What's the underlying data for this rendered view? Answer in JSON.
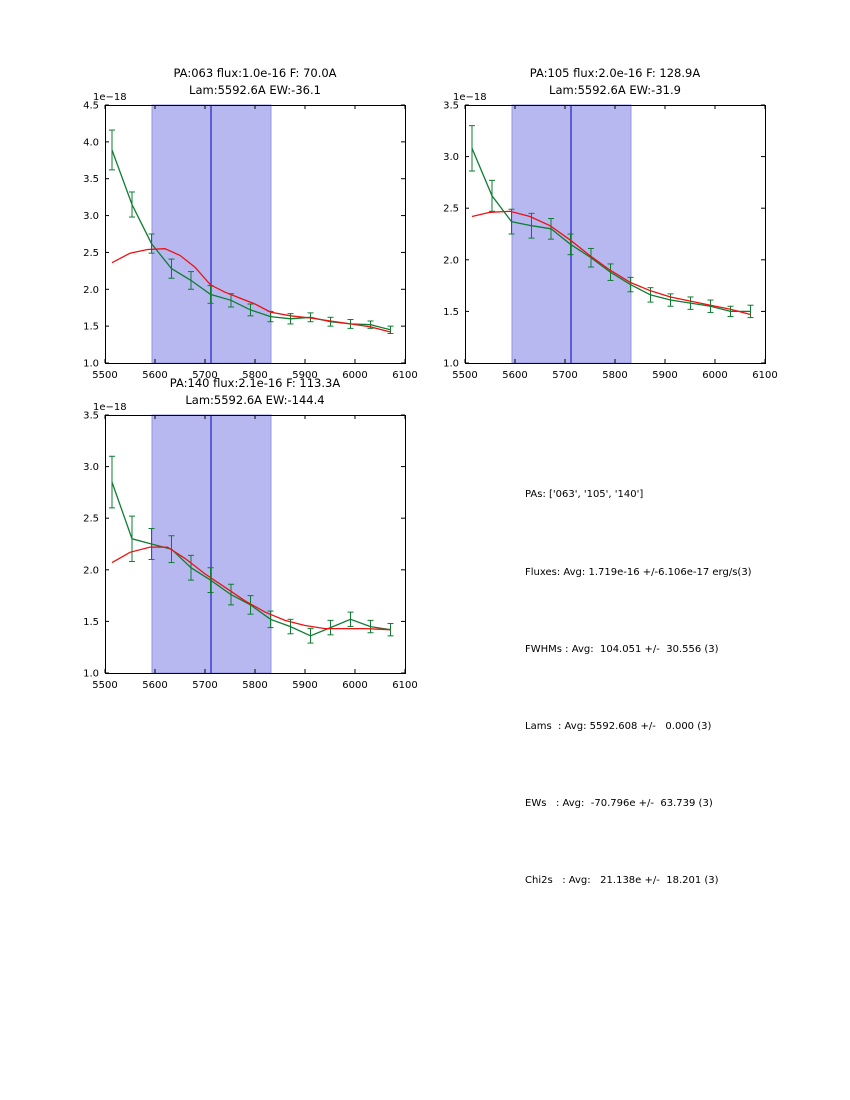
{
  "figure": {
    "background": "#ffffff"
  },
  "stats": {
    "lines": [
      "PAs: ['063', '105', '140']",
      "Fluxes: Avg: 1.719e-16 +/-6.106e-17 erg/s(3)",
      "FWHMs : Avg:  104.051 +/-  30.556 (3)",
      "Lams  : Avg: 5592.608 +/-   0.000 (3)",
      "EWs   : Avg:  -70.796e +/-  63.739 (3)",
      "Chi2s   : Avg:   21.138e +/-  18.201 (3)"
    ]
  },
  "chart_data": [
    {
      "type": "line",
      "title_line1": "PA:063 flux:1.0e-16 F: 70.0A",
      "title_line2": "Lam:5592.6A EW:-36.1",
      "offset_label": "1e−18",
      "xlabel": "",
      "ylabel": "",
      "xlim": [
        5500,
        6100
      ],
      "ylim": [
        1.0,
        4.5
      ],
      "xticks": [
        5500,
        5600,
        5700,
        5800,
        5900,
        6000,
        6100
      ],
      "yticks": [
        1.0,
        1.5,
        2.0,
        2.5,
        3.0,
        3.5,
        4.0,
        4.5
      ],
      "grid": false,
      "legend": "none",
      "band": {
        "from": 5594,
        "to": 5832,
        "color": "#b8b8f0",
        "edge": "#9595e8"
      },
      "vline": {
        "x": 5712,
        "color": "#2020c0"
      },
      "series": [
        {
          "name": "spectrum",
          "color": "#0e7d32",
          "x": [
            5514,
            5554,
            5593,
            5633,
            5672,
            5711,
            5752,
            5791,
            5831,
            5871,
            5911,
            5951,
            5991,
            6031,
            6071
          ],
          "y": [
            3.89,
            3.15,
            2.62,
            2.28,
            2.12,
            1.93,
            1.85,
            1.72,
            1.63,
            1.6,
            1.62,
            1.56,
            1.53,
            1.52,
            1.45
          ],
          "yerr": [
            0.27,
            0.17,
            0.13,
            0.13,
            0.12,
            0.12,
            0.09,
            0.08,
            0.07,
            0.07,
            0.06,
            0.06,
            0.06,
            0.05,
            0.05
          ]
        },
        {
          "name": "fit",
          "color": "#ee1111",
          "x": [
            5514,
            5550,
            5585,
            5620,
            5650,
            5680,
            5711,
            5740,
            5770,
            5800,
            5831,
            5871,
            5911,
            5951,
            5991,
            6031,
            6071
          ],
          "y": [
            2.36,
            2.49,
            2.54,
            2.55,
            2.46,
            2.3,
            2.06,
            1.96,
            1.88,
            1.8,
            1.69,
            1.64,
            1.61,
            1.57,
            1.53,
            1.49,
            1.42
          ]
        }
      ]
    },
    {
      "type": "line",
      "title_line1": "PA:105 flux:2.0e-16 F: 128.9A",
      "title_line2": "Lam:5592.6A EW:-31.9",
      "offset_label": "1e−18",
      "xlabel": "",
      "ylabel": "",
      "xlim": [
        5500,
        6100
      ],
      "ylim": [
        1.0,
        3.5
      ],
      "xticks": [
        5500,
        5600,
        5700,
        5800,
        5900,
        6000,
        6100
      ],
      "yticks": [
        1.0,
        1.5,
        2.0,
        2.5,
        3.0,
        3.5
      ],
      "grid": false,
      "legend": "none",
      "band": {
        "from": 5594,
        "to": 5832,
        "color": "#b8b8f0",
        "edge": "#9595e8"
      },
      "vline": {
        "x": 5712,
        "color": "#2020c0"
      },
      "series": [
        {
          "name": "spectrum",
          "color": "#0e7d32",
          "x": [
            5514,
            5554,
            5593,
            5633,
            5672,
            5711,
            5752,
            5791,
            5831,
            5871,
            5911,
            5951,
            5991,
            6031,
            6071
          ],
          "y": [
            3.08,
            2.62,
            2.37,
            2.33,
            2.3,
            2.15,
            2.02,
            1.88,
            1.76,
            1.66,
            1.61,
            1.58,
            1.55,
            1.5,
            1.5
          ],
          "yerr": [
            0.22,
            0.15,
            0.12,
            0.12,
            0.1,
            0.1,
            0.09,
            0.08,
            0.07,
            0.07,
            0.06,
            0.06,
            0.06,
            0.05,
            0.06
          ]
        },
        {
          "name": "fit",
          "color": "#ee1111",
          "x": [
            5514,
            5550,
            5590,
            5630,
            5670,
            5711,
            5750,
            5790,
            5831,
            5871,
            5911,
            5951,
            5991,
            6031,
            6071
          ],
          "y": [
            2.42,
            2.46,
            2.47,
            2.42,
            2.33,
            2.19,
            2.04,
            1.9,
            1.78,
            1.7,
            1.64,
            1.6,
            1.56,
            1.52,
            1.47
          ]
        }
      ]
    },
    {
      "type": "line",
      "title_line1": "PA:140 flux:2.1e-16 F: 113.3A",
      "title_line2": "Lam:5592.6A EW:-144.4",
      "offset_label": "1e−18",
      "xlabel": "",
      "ylabel": "",
      "xlim": [
        5500,
        6100
      ],
      "ylim": [
        1.0,
        3.5
      ],
      "xticks": [
        5500,
        5600,
        5700,
        5800,
        5900,
        6000,
        6100
      ],
      "yticks": [
        1.0,
        1.5,
        2.0,
        2.5,
        3.0,
        3.5
      ],
      "grid": false,
      "legend": "none",
      "band": {
        "from": 5594,
        "to": 5832,
        "color": "#b8b8f0",
        "edge": "#9595e8"
      },
      "vline": {
        "x": 5712,
        "color": "#2020c0"
      },
      "series": [
        {
          "name": "spectrum",
          "color": "#0e7d32",
          "x": [
            5514,
            5554,
            5593,
            5633,
            5672,
            5711,
            5752,
            5791,
            5831,
            5871,
            5911,
            5951,
            5991,
            6031,
            6071
          ],
          "y": [
            2.85,
            2.3,
            2.25,
            2.2,
            2.02,
            1.9,
            1.76,
            1.66,
            1.52,
            1.45,
            1.36,
            1.44,
            1.52,
            1.45,
            1.42
          ],
          "yerr": [
            0.25,
            0.22,
            0.15,
            0.13,
            0.12,
            0.12,
            0.1,
            0.09,
            0.08,
            0.07,
            0.07,
            0.07,
            0.07,
            0.06,
            0.06
          ]
        },
        {
          "name": "fit",
          "color": "#ee1111",
          "x": [
            5514,
            5550,
            5590,
            5625,
            5660,
            5700,
            5740,
            5780,
            5820,
            5860,
            5900,
            5940,
            5980,
            6020,
            6071
          ],
          "y": [
            2.07,
            2.17,
            2.22,
            2.22,
            2.11,
            1.96,
            1.83,
            1.7,
            1.59,
            1.51,
            1.46,
            1.43,
            1.43,
            1.43,
            1.42
          ]
        }
      ]
    }
  ]
}
